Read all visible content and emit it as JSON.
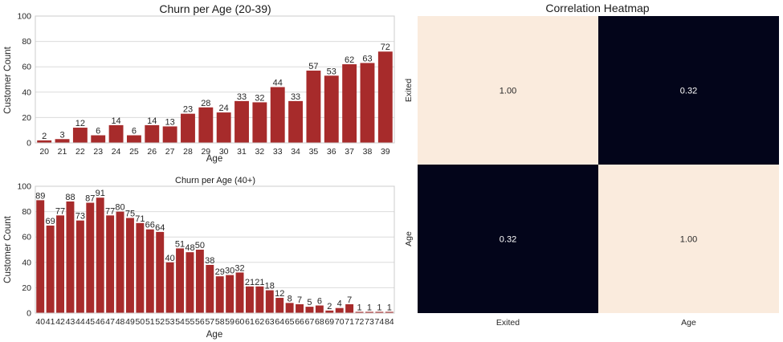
{
  "chart_data": [
    {
      "type": "bar",
      "title": "Churn per Age (20-39)",
      "xlabel": "Age",
      "ylabel": "Customer Count",
      "ylim": [
        0,
        100
      ],
      "yticks": [
        0,
        20,
        40,
        60,
        80,
        100
      ],
      "grid": true,
      "bar_color": "#a72b2b",
      "categories": [
        "20",
        "21",
        "22",
        "23",
        "24",
        "25",
        "26",
        "27",
        "28",
        "29",
        "30",
        "31",
        "32",
        "33",
        "34",
        "35",
        "36",
        "37",
        "38",
        "39"
      ],
      "values": [
        2,
        3,
        12,
        6,
        14,
        6,
        14,
        13,
        23,
        28,
        24,
        33,
        32,
        44,
        33,
        57,
        53,
        62,
        63,
        72
      ]
    },
    {
      "type": "bar",
      "title": "Churn per Age (40+)",
      "xlabel": "Age",
      "ylabel": "Customer Count",
      "ylim": [
        0,
        100
      ],
      "yticks": [
        0,
        20,
        40,
        60,
        80,
        100
      ],
      "grid": true,
      "bar_color": "#a72b2b",
      "categories": [
        "40",
        "41",
        "42",
        "43",
        "44",
        "45",
        "46",
        "47",
        "48",
        "49",
        "50",
        "51",
        "52",
        "53",
        "54",
        "55",
        "56",
        "57",
        "58",
        "59",
        "60",
        "61",
        "62",
        "63",
        "64",
        "65",
        "66",
        "67",
        "68",
        "69",
        "70",
        "71",
        "72",
        "73",
        "74",
        "84"
      ],
      "values": [
        89,
        69,
        77,
        88,
        73,
        87,
        91,
        77,
        80,
        75,
        71,
        66,
        64,
        40,
        51,
        48,
        50,
        38,
        29,
        30,
        32,
        21,
        21,
        18,
        12,
        8,
        7,
        5,
        6,
        2,
        4,
        7,
        1,
        1,
        1,
        1
      ]
    },
    {
      "type": "heatmap",
      "title": "Correlation Heatmap",
      "rows": [
        "Exited",
        "Age"
      ],
      "columns": [
        "Exited",
        "Age"
      ],
      "values": [
        [
          "1.00",
          "0.32"
        ],
        [
          "0.32",
          "1.00"
        ]
      ],
      "color_high": "#faebdd",
      "color_low": "#03051a",
      "text_on_high": "#262626",
      "text_on_low": "#ffffff"
    }
  ]
}
